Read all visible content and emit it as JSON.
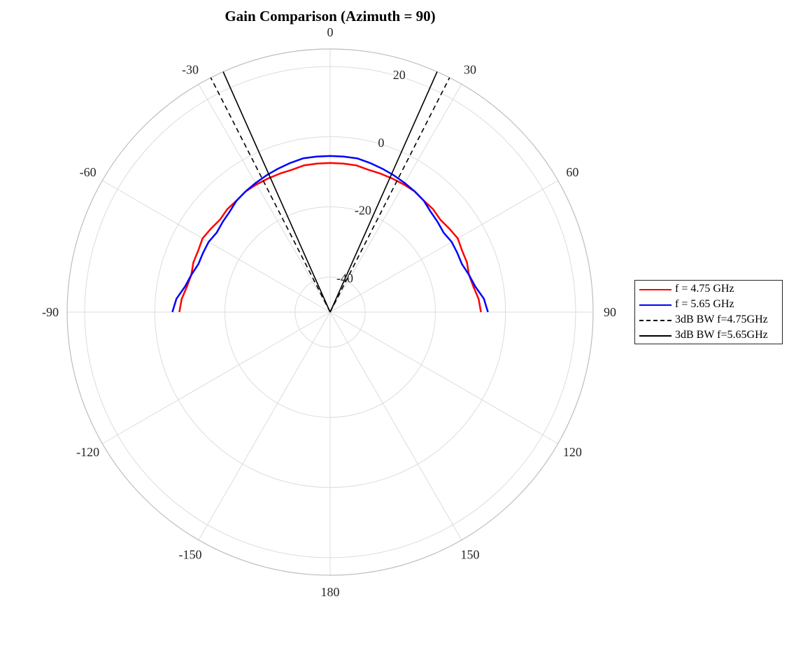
{
  "chart_data": {
    "type": "polar-line",
    "title": "Gain Comparison (Azimuth = 90)",
    "theta_ticks": [
      "0",
      "30",
      "60",
      "90",
      "120",
      "150",
      "180",
      "-150",
      "-120",
      "-90",
      "-60",
      "-30"
    ],
    "r_ticks": [
      "-40",
      "-20",
      "0",
      "20"
    ],
    "r_lim": [
      -50,
      25
    ],
    "grid": true,
    "legend_position": "right",
    "colors": {
      "f475": "#ff0000",
      "f565": "#0000ff",
      "bw475": "#000000",
      "bw565": "#000000",
      "grid": "#dcdcdc"
    },
    "series": [
      {
        "name": "f = 4.75 GHz",
        "key": "f475",
        "style": "solid",
        "points": [
          [
            -90,
            -7
          ],
          [
            -85,
            -7.5
          ],
          [
            -80,
            -8.5
          ],
          [
            -75,
            -9
          ],
          [
            -70,
            -8.5
          ],
          [
            -65,
            -8.5
          ],
          [
            -60,
            -8
          ],
          [
            -55,
            -8.5
          ],
          [
            -50,
            -9
          ],
          [
            -45,
            -8.5
          ],
          [
            -40,
            -8.5
          ],
          [
            -35,
            -8
          ],
          [
            -30,
            -8
          ],
          [
            -25,
            -8
          ],
          [
            -20,
            -8
          ],
          [
            -15,
            -8
          ],
          [
            -10,
            -7.5
          ],
          [
            -5,
            -7.5
          ],
          [
            0,
            -7.5
          ],
          [
            5,
            -7.5
          ],
          [
            10,
            -7.5
          ],
          [
            15,
            -8
          ],
          [
            20,
            -8
          ],
          [
            25,
            -8
          ],
          [
            30,
            -8
          ],
          [
            35,
            -8
          ],
          [
            40,
            -8.5
          ],
          [
            45,
            -8.5
          ],
          [
            50,
            -9
          ],
          [
            55,
            -8.5
          ],
          [
            60,
            -8
          ],
          [
            65,
            -8.5
          ],
          [
            70,
            -8.5
          ],
          [
            75,
            -9
          ],
          [
            80,
            -8.5
          ],
          [
            85,
            -7.5
          ],
          [
            90,
            -7
          ]
        ]
      },
      {
        "name": "f = 5.65 GHz",
        "key": "f565",
        "style": "solid",
        "points": [
          [
            -90,
            -5
          ],
          [
            -85,
            -6
          ],
          [
            -80,
            -8
          ],
          [
            -75,
            -9
          ],
          [
            -70,
            -10
          ],
          [
            -65,
            -10
          ],
          [
            -60,
            -10
          ],
          [
            -55,
            -10.5
          ],
          [
            -50,
            -10
          ],
          [
            -45,
            -9.5
          ],
          [
            -40,
            -8.5
          ],
          [
            -35,
            -8
          ],
          [
            -30,
            -7.5
          ],
          [
            -25,
            -7
          ],
          [
            -20,
            -6.5
          ],
          [
            -15,
            -6
          ],
          [
            -10,
            -5.5
          ],
          [
            -5,
            -5.5
          ],
          [
            0,
            -5.5
          ],
          [
            5,
            -5.5
          ],
          [
            10,
            -5.5
          ],
          [
            15,
            -6
          ],
          [
            20,
            -6.5
          ],
          [
            25,
            -7
          ],
          [
            30,
            -7.5
          ],
          [
            35,
            -8
          ],
          [
            40,
            -8.5
          ],
          [
            45,
            -9.5
          ],
          [
            50,
            -10
          ],
          [
            55,
            -10.5
          ],
          [
            60,
            -10
          ],
          [
            65,
            -10
          ],
          [
            70,
            -10
          ],
          [
            75,
            -9
          ],
          [
            80,
            -8
          ],
          [
            85,
            -6
          ],
          [
            90,
            -5
          ]
        ]
      },
      {
        "name": "3dB BW f=4.75GHz",
        "key": "bw475",
        "style": "dashed",
        "lines": [
          [
            -27,
            25
          ],
          [
            27,
            25
          ]
        ]
      },
      {
        "name": "3dB BW f=5.65GHz",
        "key": "bw565",
        "style": "solid",
        "lines": [
          [
            -24,
            25
          ],
          [
            24,
            25
          ]
        ]
      }
    ]
  }
}
